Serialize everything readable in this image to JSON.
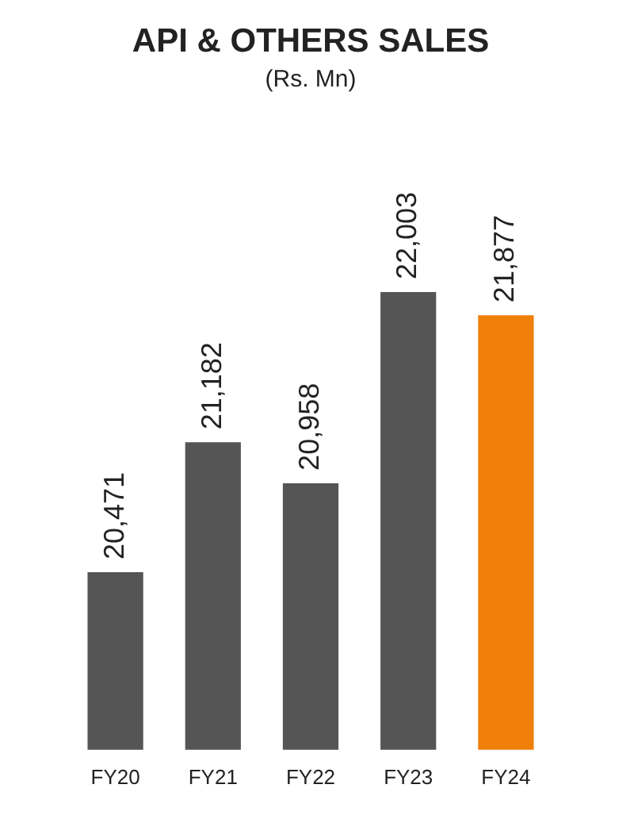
{
  "chart_data": {
    "type": "bar",
    "title": "API & OTHERS SALES",
    "subtitle": "(Rs. Mn)",
    "categories": [
      "FY20",
      "FY21",
      "FY22",
      "FY23",
      "FY24"
    ],
    "values": [
      20471,
      21182,
      20958,
      22003,
      21877
    ],
    "colors": [
      "#555555",
      "#555555",
      "#555555",
      "#555555",
      "#f07f09"
    ],
    "value_labels": [
      "20,471",
      "21,182",
      "20,958",
      "22,003",
      "21,877"
    ],
    "grid": false,
    "legend": false
  }
}
